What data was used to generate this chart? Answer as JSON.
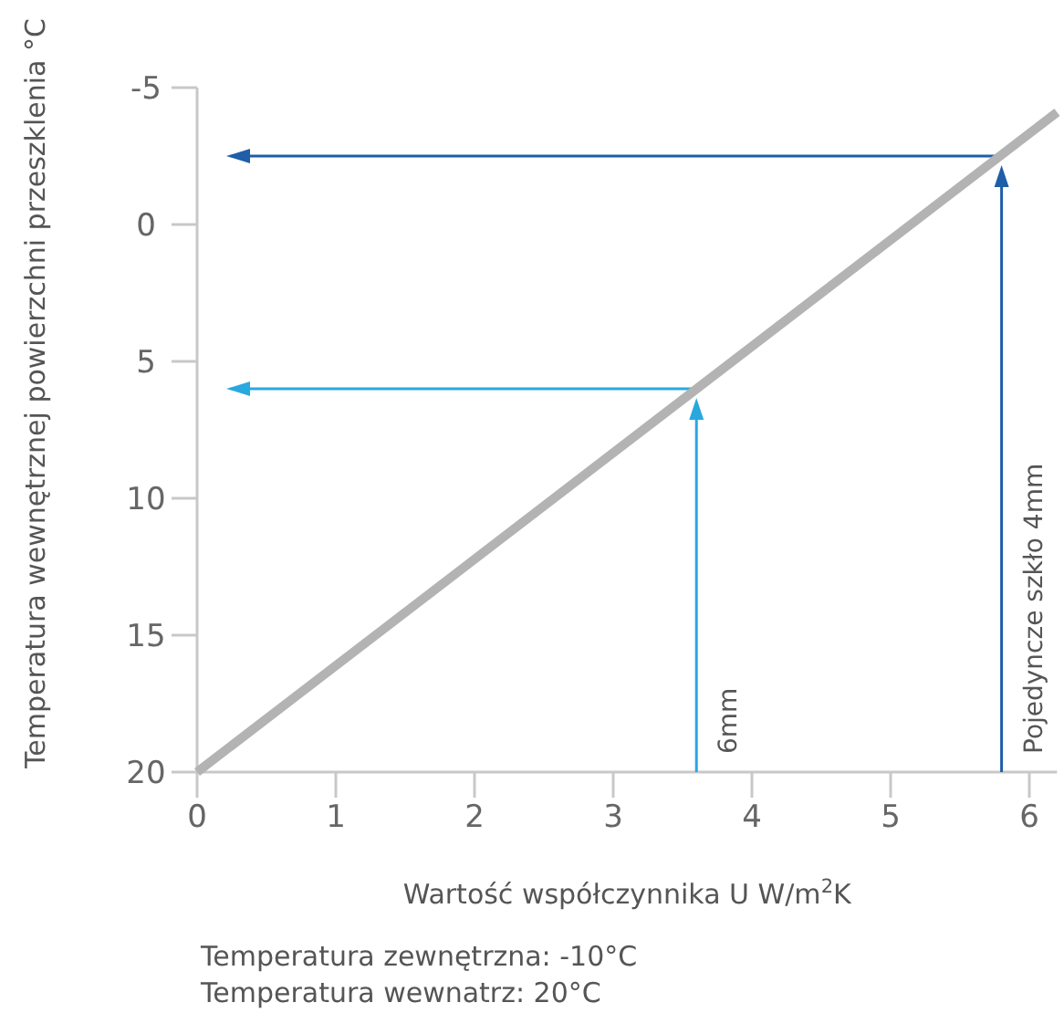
{
  "chart_data": {
    "type": "line",
    "ylabel": "Temperatura wewnętrznej powierzchni przeszklenia °C",
    "xlabel": "Wartość współczynnika U W/m$^{2}$K",
    "xlim": [
      0,
      6.2
    ],
    "xticks": [
      0,
      1,
      2,
      3,
      4,
      5,
      6
    ],
    "ylim": [
      20,
      -5
    ],
    "yticks": [
      -5,
      0,
      5,
      10,
      15,
      20
    ],
    "grid": false,
    "ref_lines": [
      {
        "axis": "x",
        "value": 3.6,
        "label": "6mm",
        "color": "#29a8e0"
      },
      {
        "axis": "y",
        "value": 6,
        "color": "#29a8e0"
      },
      {
        "axis": "x",
        "value": 5.8,
        "label": "Pojedyncze szkło 4mm",
        "color": "#1f5ea8"
      },
      {
        "axis": "y",
        "value": -2.5,
        "color": "#1f5ea8"
      }
    ],
    "series": [
      {
        "color": "#b3b3b3",
        "x": [
          0,
          6.2
        ],
        "values": [
          20,
          -4.1
        ]
      }
    ],
    "annotations": [
      "Temperatura zewnętrzna: -10°C",
      "Temperatura wewnatrz: 20°C"
    ]
  }
}
